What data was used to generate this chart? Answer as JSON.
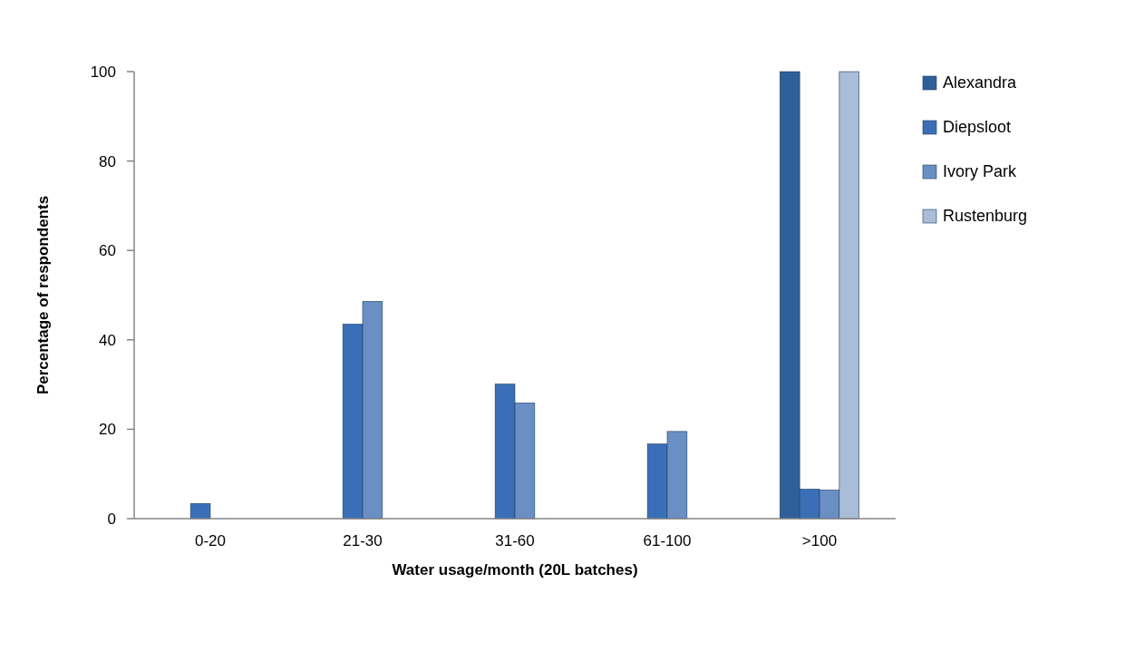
{
  "chart_data": {
    "type": "bar",
    "xlabel": "Water usage/month (20L batches)",
    "ylabel": "Percentage of respondents",
    "categories": [
      "0-20",
      "21-30",
      "31-60",
      "61-100",
      ">100"
    ],
    "series": [
      {
        "name": "Alexandra",
        "color": "#2f5f98",
        "values": [
          null,
          null,
          null,
          null,
          100
        ]
      },
      {
        "name": "Diepsloot",
        "color": "#3a6fb8",
        "values": [
          3.4,
          43.5,
          30.1,
          16.7,
          6.6
        ]
      },
      {
        "name": "Ivory Park",
        "color": "#6a8fc4",
        "values": [
          null,
          48.6,
          25.9,
          19.5,
          6.4
        ]
      },
      {
        "name": "Rustenburg",
        "color": "#a9bcd8",
        "values": [
          null,
          null,
          null,
          null,
          100
        ]
      }
    ],
    "ylim": [
      0,
      100
    ],
    "yticks": [
      0,
      20,
      40,
      60,
      80,
      100
    ],
    "grid": false,
    "legend": "right"
  }
}
